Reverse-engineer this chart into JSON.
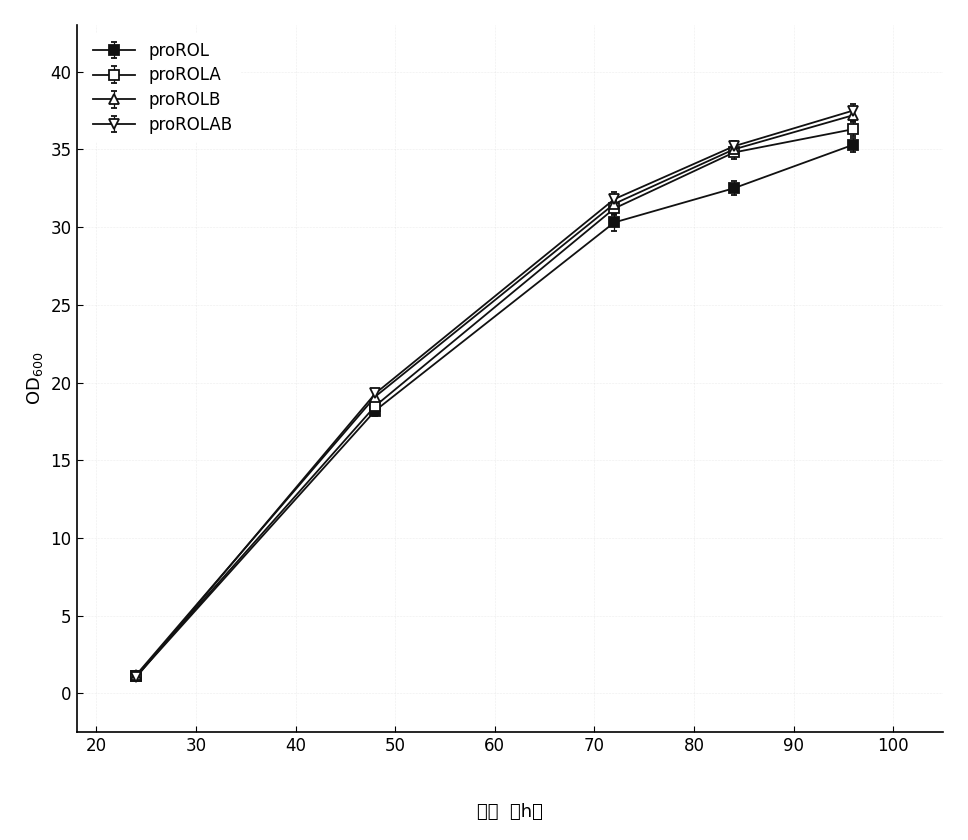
{
  "series": [
    {
      "label": "proROL",
      "x": [
        24,
        48,
        72,
        84,
        96
      ],
      "y": [
        1.1,
        18.2,
        30.3,
        32.5,
        35.3
      ],
      "yerr": [
        0.15,
        0.35,
        0.55,
        0.45,
        0.45
      ],
      "marker": "s",
      "marker_filled": true,
      "color": "#111111"
    },
    {
      "label": "proROLA",
      "x": [
        24,
        48,
        72,
        84,
        96
      ],
      "y": [
        1.15,
        18.5,
        31.2,
        34.8,
        36.3
      ],
      "yerr": [
        0.12,
        0.3,
        0.45,
        0.45,
        0.45
      ],
      "marker": "s",
      "marker_filled": false,
      "color": "#111111"
    },
    {
      "label": "proROLB",
      "x": [
        24,
        48,
        72,
        84,
        96
      ],
      "y": [
        1.2,
        19.1,
        31.5,
        35.0,
        37.2
      ],
      "yerr": [
        0.12,
        0.3,
        0.45,
        0.45,
        0.35
      ],
      "marker": "^",
      "marker_filled": false,
      "color": "#111111"
    },
    {
      "label": "proROLAB",
      "x": [
        24,
        48,
        72,
        84,
        96
      ],
      "y": [
        1.05,
        19.3,
        31.8,
        35.2,
        37.5
      ],
      "yerr": [
        0.12,
        0.3,
        0.45,
        0.35,
        0.4
      ],
      "marker": "v",
      "marker_filled": false,
      "color": "#111111"
    }
  ],
  "xlabel_cn": "时间",
  "xlabel_en": "（h）",
  "ylabel": "OD$_{600}$",
  "xlim": [
    18,
    105
  ],
  "ylim": [
    -2.5,
    43
  ],
  "xticks": [
    20,
    30,
    40,
    50,
    60,
    70,
    80,
    90,
    100
  ],
  "yticks": [
    0,
    5,
    10,
    15,
    20,
    25,
    30,
    35,
    40
  ],
  "background_color": "#ffffff",
  "line_width": 1.3,
  "marker_size": 7,
  "legend_fontsize": 12,
  "axis_fontsize": 13,
  "tick_fontsize": 12
}
